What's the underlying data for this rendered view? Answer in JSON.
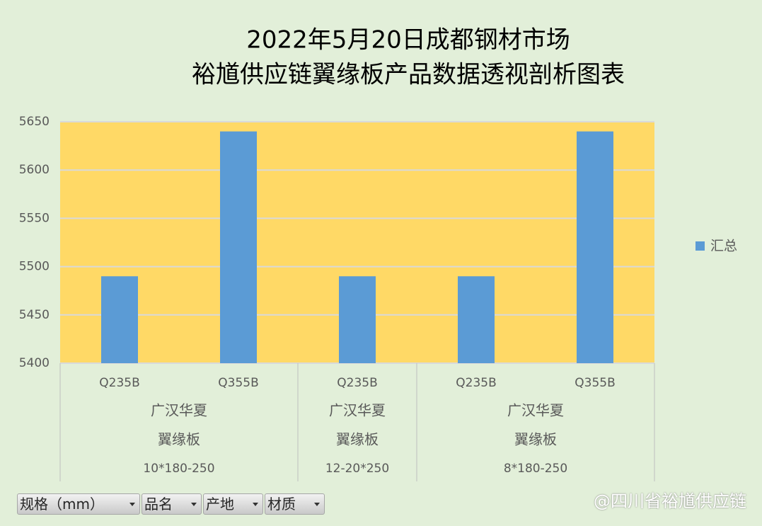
{
  "chart_data": {
    "type": "bar",
    "title": [
      "2022年5月20日成都钢材市场",
      "裕馗供应链翼缘板产品数据透视剖析图表"
    ],
    "groups": [
      {
        "spec": "10*180-250",
        "product": "翼缘板",
        "origin": "广汉华夏",
        "categories": [
          "Q235B",
          "Q355B"
        ],
        "values": [
          5490,
          5640
        ]
      },
      {
        "spec": "12-20*250",
        "product": "翼缘板",
        "origin": "广汉华夏",
        "categories": [
          "Q235B"
        ],
        "values": [
          5490
        ]
      },
      {
        "spec": "8*180-250",
        "product": "翼缘板",
        "origin": "广汉华夏",
        "categories": [
          "Q235B",
          "Q355B"
        ],
        "values": [
          5490,
          5640
        ]
      }
    ],
    "series_name": "汇总",
    "color": "#5b9bd5",
    "ylim": [
      5400,
      5650
    ],
    "yticks": [
      5400,
      5450,
      5500,
      5550,
      5600,
      5650
    ],
    "grid": true,
    "legend": "right",
    "field_buttons": [
      "规格（mm）",
      "品名",
      "产地",
      "材质"
    ]
  },
  "watermark": "@四川省裕馗供应链"
}
